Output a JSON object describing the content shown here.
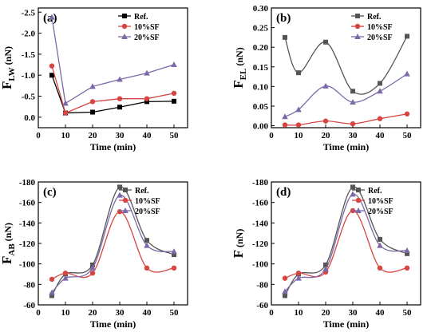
{
  "chart_data": [
    {
      "type": "line",
      "panel_label": "(a)",
      "ylabel_main": "F",
      "ylabel_sub": "LW",
      "ylabel_unit": "(nN)",
      "xlabel": "Time (min)",
      "xlim": [
        0,
        55
      ],
      "xticks": [
        0,
        10,
        20,
        30,
        40,
        50
      ],
      "ylim": [
        0.25,
        -2.6
      ],
      "yticks": [
        0.0,
        -0.5,
        -1.0,
        -1.5,
        -2.0,
        -2.5
      ],
      "ytick_labels": [
        "0.0",
        "-0.5",
        "-1.0",
        "-1.5",
        "-2.0",
        "-2.5"
      ],
      "legend_position": "top-right",
      "series": [
        {
          "name": "Ref.",
          "marker": "square",
          "color": "#000000",
          "x": [
            5,
            10,
            20,
            30,
            40,
            50
          ],
          "y": [
            -1.0,
            -0.1,
            -0.12,
            -0.24,
            -0.37,
            -0.38
          ]
        },
        {
          "name": "10%SF",
          "marker": "circle",
          "color": "#d64541",
          "x": [
            5,
            10,
            20,
            30,
            40,
            50
          ],
          "y": [
            -1.22,
            -0.1,
            -0.37,
            -0.44,
            -0.44,
            -0.57
          ]
        },
        {
          "name": "20%SF",
          "marker": "triangle",
          "color": "#7b68a6",
          "x": [
            5,
            10,
            20,
            30,
            40,
            50
          ],
          "y": [
            -2.38,
            -0.33,
            -0.73,
            -0.9,
            -1.05,
            -1.25
          ]
        }
      ]
    },
    {
      "type": "line",
      "panel_label": "(b)",
      "ylabel_main": "F",
      "ylabel_sub": "EL",
      "ylabel_unit": "(nN)",
      "xlabel": "Time (min)",
      "xlim": [
        0,
        55
      ],
      "xticks": [
        0,
        10,
        20,
        30,
        40,
        50
      ],
      "ylim": [
        -0.005,
        0.3
      ],
      "yticks": [
        0.0,
        0.05,
        0.1,
        0.15,
        0.2,
        0.25,
        0.3
      ],
      "ytick_labels": [
        "0.00",
        "0.05",
        "0.10",
        "0.15",
        "0.20",
        "0.25",
        "0.30"
      ],
      "legend_position": "top-right",
      "series": [
        {
          "name": "Ref.",
          "marker": "square",
          "color": "#555555",
          "x": [
            5,
            10,
            20,
            30,
            40,
            50
          ],
          "y": [
            0.225,
            0.135,
            0.213,
            0.088,
            0.108,
            0.228
          ]
        },
        {
          "name": "10%SF",
          "marker": "circle",
          "color": "#d64541",
          "x": [
            5,
            10,
            20,
            30,
            40,
            50
          ],
          "y": [
            0.002,
            0.002,
            0.012,
            0.005,
            0.018,
            0.03
          ]
        },
        {
          "name": "20%SF",
          "marker": "triangle",
          "color": "#7b68a6",
          "x": [
            5,
            10,
            20,
            30,
            40,
            50
          ],
          "y": [
            0.023,
            0.041,
            0.101,
            0.06,
            0.088,
            0.132
          ]
        }
      ]
    },
    {
      "type": "line",
      "panel_label": "(c)",
      "ylabel_main": "F",
      "ylabel_sub": "AB",
      "ylabel_unit": "(nN)",
      "xlabel": "Time (min)",
      "xlim": [
        0,
        55
      ],
      "xticks": [
        0,
        10,
        20,
        30,
        40,
        50
      ],
      "ylim": [
        -60,
        -180
      ],
      "yticks": [
        -60,
        -80,
        -100,
        -120,
        -140,
        -160,
        -180
      ],
      "ytick_labels": [
        "-60",
        "-80",
        "-100",
        "-120",
        "-140",
        "-160",
        "-180"
      ],
      "legend_position": "top-right",
      "series": [
        {
          "name": "Ref.",
          "marker": "square",
          "color": "#555555",
          "x": [
            5,
            10,
            20,
            30,
            40,
            50
          ],
          "y": [
            -69,
            -90,
            -99,
            -175,
            -123,
            -109
          ]
        },
        {
          "name": "10%SF",
          "marker": "circle",
          "color": "#d64541",
          "x": [
            5,
            10,
            20,
            30,
            40,
            50
          ],
          "y": [
            -85,
            -91,
            -91,
            -151,
            -96,
            -96
          ]
        },
        {
          "name": "20%SF",
          "marker": "triangle",
          "color": "#7b68a6",
          "x": [
            5,
            10,
            20,
            30,
            40,
            50
          ],
          "y": [
            -72,
            -86,
            -96,
            -167,
            -118,
            -112
          ]
        }
      ]
    },
    {
      "type": "line",
      "panel_label": "(d)",
      "ylabel_main": "F",
      "ylabel_sub": "",
      "ylabel_unit": "(nN)",
      "xlabel": "Time (min)",
      "xlim": [
        0,
        55
      ],
      "xticks": [
        0,
        10,
        20,
        30,
        40,
        50
      ],
      "ylim": [
        -60,
        -180
      ],
      "yticks": [
        -60,
        -80,
        -100,
        -120,
        -140,
        -160,
        -180
      ],
      "ytick_labels": [
        "-60",
        "-80",
        "-100",
        "-120",
        "-140",
        "-160",
        "-180"
      ],
      "legend_position": "top-right",
      "series": [
        {
          "name": "Ref.",
          "marker": "square",
          "color": "#555555",
          "x": [
            5,
            10,
            20,
            30,
            40,
            50
          ],
          "y": [
            -69,
            -90,
            -99,
            -175,
            -124,
            -110
          ]
        },
        {
          "name": "10%SF",
          "marker": "circle",
          "color": "#d64541",
          "x": [
            5,
            10,
            20,
            30,
            40,
            50
          ],
          "y": [
            -86,
            -91,
            -92,
            -152,
            -96,
            -96
          ]
        },
        {
          "name": "20%SF",
          "marker": "triangle",
          "color": "#7b68a6",
          "x": [
            5,
            10,
            20,
            30,
            40,
            50
          ],
          "y": [
            -73,
            -86,
            -95,
            -168,
            -118,
            -113
          ]
        }
      ]
    }
  ]
}
